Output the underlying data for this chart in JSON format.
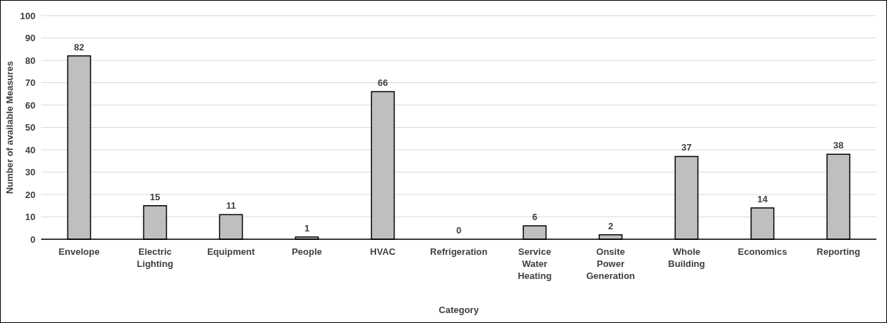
{
  "chart_data": {
    "type": "bar",
    "xlabel": "Category",
    "ylabel": "Number of available Measures",
    "categories": [
      "Envelope",
      "Electric Lighting",
      "Equipment",
      "People",
      "HVAC",
      "Refrigeration",
      "Service Water Heating",
      "Onsite Power Generation",
      "Whole Building",
      "Economics",
      "Reporting"
    ],
    "values": [
      82,
      15,
      11,
      1,
      66,
      0,
      6,
      2,
      37,
      14,
      38
    ],
    "color": "#bfbfbf",
    "data_labels": true,
    "grid": "y",
    "ylim": [
      0,
      100
    ],
    "yticks": [
      0,
      10,
      20,
      30,
      40,
      50,
      60,
      70,
      80,
      90,
      100
    ]
  }
}
